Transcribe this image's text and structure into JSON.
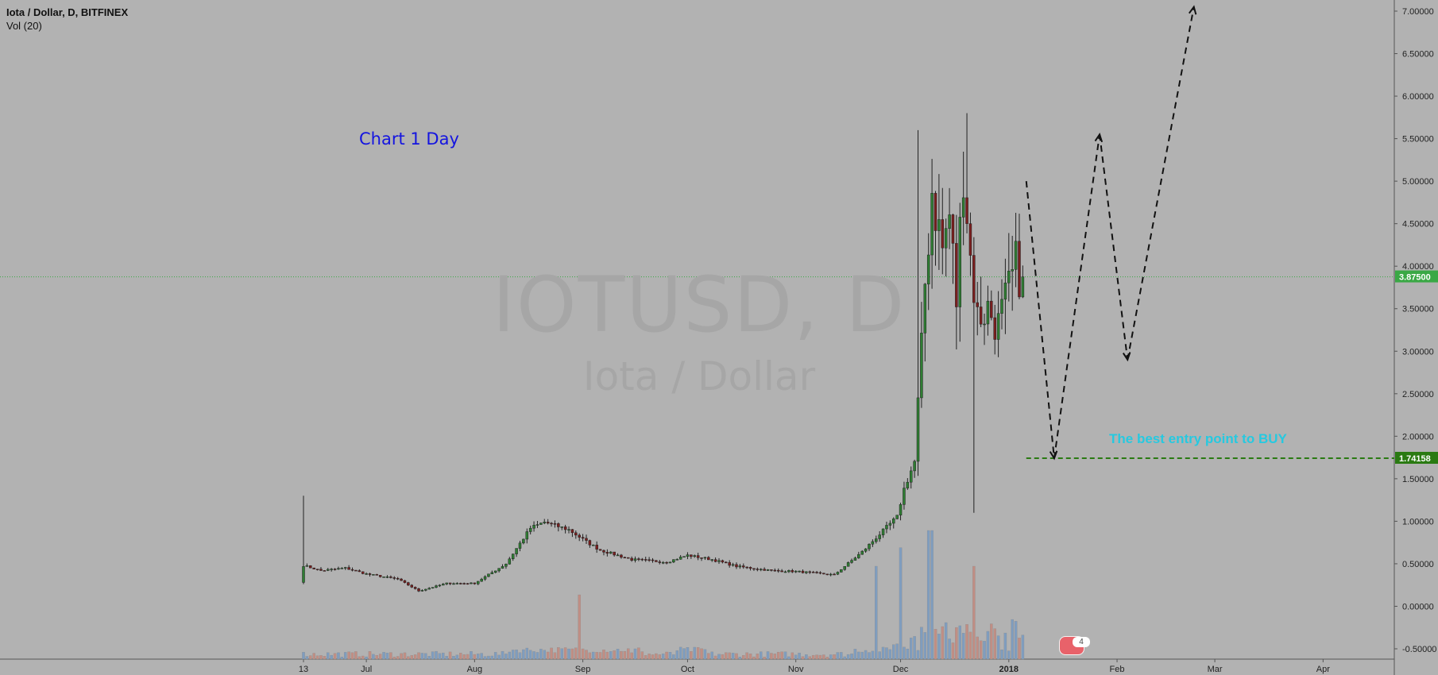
{
  "header": {
    "title": "Iota / Dollar, D, BITFINEX",
    "volume_indicator": "Vol (20)"
  },
  "annotations": {
    "chart_note": "Chart 1 Day",
    "buy_label": "The best entry point to BUY",
    "watermark_symbol": "IOTUSD, D",
    "watermark_name": "Iota / Dollar",
    "events_badge": "4"
  },
  "colors": {
    "background": "#b2b2b2",
    "up_candle": "#2e7d32",
    "down_candle": "#7b1e1e",
    "volume_up": "#7f9dbf",
    "volume_down": "#c18e84",
    "current_price": "#3aa845",
    "buy_line": "#2a7a12",
    "chart_note": "#1414e0",
    "buy_label": "#26c9e0"
  },
  "chart_data": {
    "type": "candlestick",
    "title": "Iota / Dollar, D, BITFINEX",
    "y_axis": {
      "ticks": [
        "7.00000",
        "6.50000",
        "6.00000",
        "5.50000",
        "5.00000",
        "4.50000",
        "4.00000",
        "3.50000",
        "3.00000",
        "2.50000",
        "2.00000",
        "1.50000",
        "1.00000",
        "0.50000",
        "0.00000",
        "-0.50000"
      ],
      "ylim": [
        -0.5,
        7.0
      ],
      "position": "right"
    },
    "x_axis": {
      "labels": [
        "13",
        "Jul",
        "Aug",
        "Sep",
        "Oct",
        "Nov",
        "Dec",
        "2018",
        "Feb",
        "Mar",
        "Apr"
      ],
      "bold_labels": [
        "2018"
      ]
    },
    "current_price": {
      "label": "3.87500",
      "value": 3.875
    },
    "buy_level": {
      "label": "1.74158",
      "value": 1.74158
    },
    "price_path": [
      [
        "2017-06-13",
        0.48
      ],
      [
        "2017-06-18",
        0.42
      ],
      [
        "2017-06-25",
        0.45
      ],
      [
        "2017-07-01",
        0.38
      ],
      [
        "2017-07-10",
        0.32
      ],
      [
        "2017-07-16",
        0.18
      ],
      [
        "2017-07-24",
        0.27
      ],
      [
        "2017-08-01",
        0.27
      ],
      [
        "2017-08-10",
        0.5
      ],
      [
        "2017-08-17",
        0.92
      ],
      [
        "2017-08-21",
        0.99
      ],
      [
        "2017-08-28",
        0.9
      ],
      [
        "2017-09-02",
        0.76
      ],
      [
        "2017-09-06",
        0.66
      ],
      [
        "2017-09-15",
        0.55
      ],
      [
        "2017-09-25",
        0.52
      ],
      [
        "2017-10-01",
        0.6
      ],
      [
        "2017-10-08",
        0.55
      ],
      [
        "2017-10-15",
        0.47
      ],
      [
        "2017-10-25",
        0.42
      ],
      [
        "2017-11-01",
        0.41
      ],
      [
        "2017-11-12",
        0.37
      ],
      [
        "2017-11-20",
        0.64
      ],
      [
        "2017-11-27",
        0.93
      ],
      [
        "2017-11-30",
        1.05
      ],
      [
        "2017-12-02",
        1.38
      ],
      [
        "2017-12-05",
        1.7
      ],
      [
        "2017-12-07",
        3.0
      ],
      [
        "2017-12-08",
        3.8
      ],
      [
        "2017-12-10",
        4.9
      ],
      [
        "2017-12-13",
        4.2
      ],
      [
        "2017-12-15",
        4.6
      ],
      [
        "2017-12-17",
        3.6
      ],
      [
        "2017-12-19",
        5.2
      ],
      [
        "2017-12-21",
        4.1
      ],
      [
        "2017-12-23",
        3.4
      ],
      [
        "2017-12-26",
        3.5
      ],
      [
        "2017-12-29",
        3.3
      ],
      [
        "2018-01-01",
        3.7
      ],
      [
        "2018-01-03",
        4.0
      ],
      [
        "2018-01-05",
        3.875
      ]
    ],
    "spikes": [
      {
        "date": "2017-06-13",
        "high": 1.3
      },
      {
        "date": "2017-12-06",
        "high": 5.6
      },
      {
        "date": "2017-12-20",
        "high": 5.8
      },
      {
        "date": "2017-12-22",
        "low": 1.1
      }
    ],
    "projection": [
      [
        "2018-01-06",
        5.0
      ],
      [
        "2018-01-14",
        1.74
      ],
      [
        "2018-01-27",
        5.55
      ],
      [
        "2018-02-04",
        2.9
      ],
      [
        "2018-02-23",
        7.05
      ]
    ],
    "volume_spikes": [
      {
        "date": "2017-08-31",
        "level": 0.45
      },
      {
        "date": "2017-11-24",
        "level": 0.65
      },
      {
        "date": "2017-12-01",
        "level": 0.78
      },
      {
        "date": "2017-12-09",
        "level": 0.9
      },
      {
        "date": "2017-12-10",
        "level": 0.9
      },
      {
        "date": "2017-12-22",
        "level": 0.65
      }
    ]
  }
}
